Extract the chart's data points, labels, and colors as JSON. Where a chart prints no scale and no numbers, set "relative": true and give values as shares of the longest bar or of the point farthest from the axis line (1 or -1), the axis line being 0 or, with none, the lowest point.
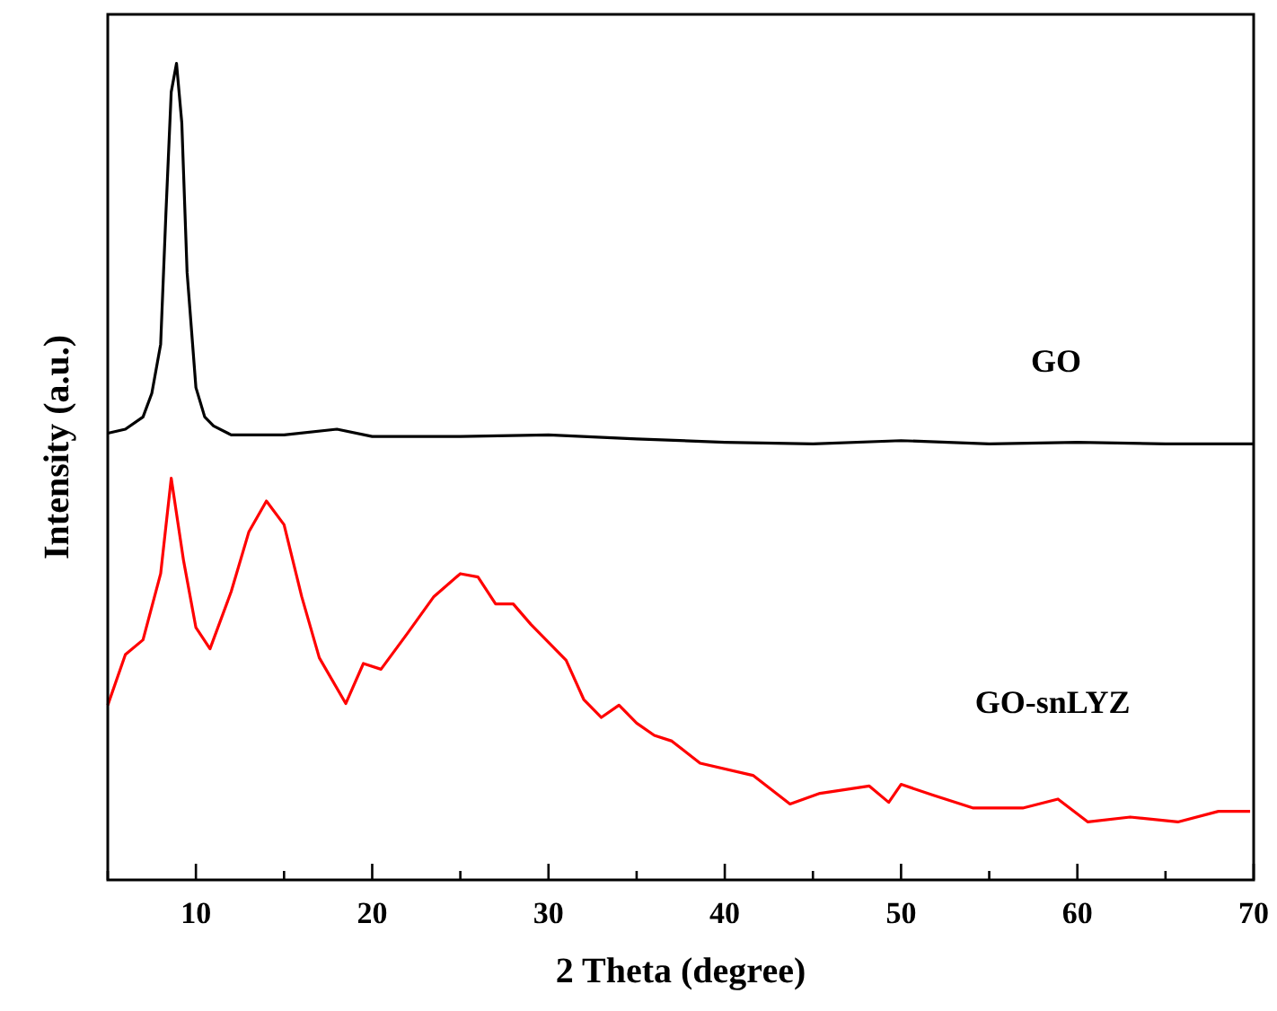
{
  "chart_data": {
    "type": "line",
    "xlabel": "2 Theta (degree)",
    "ylabel": "Intensity (a.u.)",
    "relative": true,
    "grid": false,
    "xlim": [
      5,
      70
    ],
    "xticks": [
      {
        "value": 5,
        "label": null
      },
      10,
      {
        "value": 15,
        "label": null
      },
      20,
      {
        "value": 25,
        "label": null
      },
      30,
      {
        "value": 35,
        "label": null
      },
      40,
      {
        "value": 45,
        "label": null
      },
      50,
      {
        "value": 55,
        "label": null
      },
      60,
      {
        "value": 65,
        "label": null
      },
      70
    ],
    "series": [
      {
        "name": "GO",
        "color": "#000000",
        "x": [
          5,
          6,
          7,
          7.5,
          8,
          8.3,
          8.6,
          8.9,
          9.2,
          9.5,
          10,
          10.5,
          11,
          12,
          15,
          18,
          20,
          25,
          30,
          35,
          40,
          45,
          50,
          55,
          60,
          65,
          70
        ],
        "values": [
          0.547,
          0.552,
          0.567,
          0.596,
          0.656,
          0.817,
          0.965,
          1,
          0.927,
          0.744,
          0.603,
          0.567,
          0.556,
          0.545,
          0.545,
          0.552,
          0.543,
          0.543,
          0.545,
          0.54,
          0.536,
          0.534,
          0.538,
          0.534,
          0.536,
          0.534,
          0.534
        ]
      },
      {
        "name": "GO-snLYZ",
        "color": "#ff0000",
        "x": [
          5,
          6,
          7,
          8,
          8.6,
          9.3,
          10,
          10.8,
          12,
          13,
          14,
          15,
          16,
          17,
          18.5,
          19.5,
          20.5,
          22,
          23.5,
          25,
          26,
          27,
          28,
          29,
          30,
          31,
          32,
          33,
          34,
          35,
          36,
          37,
          38.6,
          41.6,
          43.7,
          45.4,
          48.2,
          49.3,
          50,
          51.8,
          54.1,
          56.9,
          58.9,
          60.6,
          63,
          65.7,
          68,
          69.8
        ],
        "values": [
          0.214,
          0.276,
          0.294,
          0.375,
          0.492,
          0.391,
          0.309,
          0.283,
          0.353,
          0.426,
          0.464,
          0.435,
          0.347,
          0.272,
          0.216,
          0.265,
          0.258,
          0.302,
          0.347,
          0.375,
          0.371,
          0.338,
          0.338,
          0.313,
          0.291,
          0.269,
          0.221,
          0.199,
          0.214,
          0.192,
          0.177,
          0.17,
          0.143,
          0.128,
          0.093,
          0.106,
          0.115,
          0.095,
          0.117,
          0.104,
          0.088,
          0.088,
          0.099,
          0.071,
          0.077,
          0.071,
          0.084,
          0.084
        ]
      }
    ]
  }
}
